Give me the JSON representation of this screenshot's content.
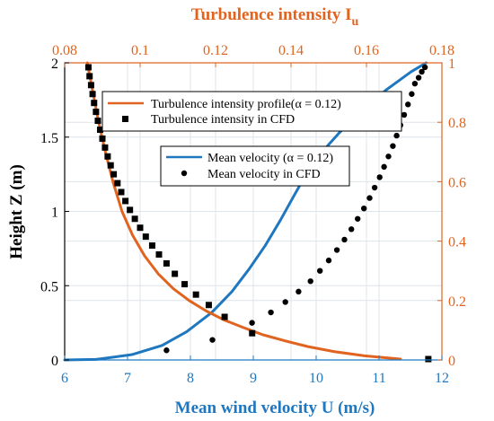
{
  "chart_data": {
    "type": "line",
    "title": "",
    "xlabel_bottom": "Mean wind velocity U (m/s)",
    "xlabel_top_main": "Turbulence intensity I",
    "xlabel_top_sub": "u",
    "ylabel": "Height Z (m)",
    "x_bottom_range": [
      6,
      12
    ],
    "x_bottom_ticks": [
      "6",
      "7",
      "8",
      "9",
      "10",
      "11",
      "12"
    ],
    "x_top_range": [
      0.08,
      0.18
    ],
    "x_top_ticks": [
      "0.08",
      "0.1",
      "0.12",
      "0.14",
      "0.16",
      "0.18"
    ],
    "y_left_range": [
      0,
      2
    ],
    "y_left_ticks": [
      "0",
      "0.5",
      "1",
      "1.5",
      "2"
    ],
    "y_right_range": [
      0,
      1
    ],
    "y_right_ticks": [
      "0",
      "0.2",
      "0.4",
      "0.6",
      "0.8",
      "1"
    ],
    "grid": true,
    "colors": {
      "velocity": "#1f77c0",
      "turbulence": "#e06420",
      "markers": "#000000",
      "grid": "#dde4ea"
    },
    "legend_turbulence": {
      "placement": "top-center",
      "entries": [
        "Turbulence intensity profile(α = 0.12)",
        "Turbulence intensity in CFD"
      ]
    },
    "legend_velocity": {
      "placement": "upper-middle",
      "entries": [
        "Mean velocity (α = 0.12)",
        "Mean velocity in CFD"
      ]
    },
    "series": [
      {
        "name": "Mean velocity (α = 0.12)",
        "axis": "bottom",
        "style": "line",
        "x": [
          6.0,
          6.5,
          7.07,
          7.55,
          7.94,
          8.34,
          8.66,
          8.93,
          9.19,
          9.43,
          9.64,
          9.84,
          10.02,
          10.2,
          10.37,
          10.53,
          10.69,
          10.84,
          10.98,
          11.12,
          11.25,
          11.38,
          11.51,
          11.63,
          11.75
        ],
        "y": [
          0.0,
          0.0036,
          0.036,
          0.098,
          0.19,
          0.32,
          0.46,
          0.61,
          0.77,
          0.94,
          1.1,
          1.25,
          1.36,
          1.45,
          1.53,
          1.6,
          1.66,
          1.72,
          1.77,
          1.82,
          1.86,
          1.9,
          1.94,
          1.97,
          2.0
        ]
      },
      {
        "name": "Mean velocity in CFD",
        "axis": "bottom",
        "style": "dot",
        "x": [
          7.62,
          8.35,
          8.98,
          9.28,
          9.51,
          9.72,
          9.91,
          10.06,
          10.2,
          10.33,
          10.45,
          10.56,
          10.66,
          10.76,
          10.85,
          10.93,
          11.01,
          11.08,
          11.15,
          11.22,
          11.28,
          11.34,
          11.4,
          11.46,
          11.52,
          11.57,
          11.63,
          11.68,
          11.73
        ],
        "y": [
          0.065,
          0.135,
          0.25,
          0.32,
          0.39,
          0.46,
          0.53,
          0.6,
          0.67,
          0.74,
          0.81,
          0.88,
          0.95,
          1.02,
          1.09,
          1.16,
          1.23,
          1.3,
          1.37,
          1.44,
          1.51,
          1.58,
          1.65,
          1.72,
          1.79,
          1.86,
          1.9,
          1.94,
          1.97
        ]
      },
      {
        "name": "Turbulence intensity profile(α = 0.12)",
        "axis": "top",
        "style": "line",
        "x": [
          0.086,
          0.0875,
          0.089,
          0.0908,
          0.0928,
          0.0952,
          0.098,
          0.1012,
          0.1048,
          0.1088,
          0.113,
          0.1175,
          0.1222,
          0.1272,
          0.1325,
          0.1382,
          0.1445,
          0.1515,
          0.1595,
          0.169
        ],
        "y": [
          1.0,
          0.9,
          0.8,
          0.7,
          0.6,
          0.5,
          0.42,
          0.35,
          0.29,
          0.24,
          0.2,
          0.165,
          0.135,
          0.11,
          0.085,
          0.065,
          0.045,
          0.028,
          0.014,
          0.003
        ]
      },
      {
        "name": "Turbulence intensity in CFD",
        "axis": "top",
        "style": "square",
        "x": [
          0.0863,
          0.0866,
          0.087,
          0.0874,
          0.0878,
          0.0883,
          0.0888,
          0.0894,
          0.09,
          0.0907,
          0.0914,
          0.0922,
          0.093,
          0.094,
          0.095,
          0.0961,
          0.0973,
          0.0986,
          0.1,
          0.1015,
          0.1032,
          0.105,
          0.107,
          0.1092,
          0.1118,
          0.1148,
          0.1182,
          0.1224,
          0.1297,
          0.1764
        ],
        "y": [
          0.985,
          0.955,
          0.925,
          0.895,
          0.865,
          0.835,
          0.805,
          0.775,
          0.745,
          0.715,
          0.685,
          0.655,
          0.625,
          0.595,
          0.565,
          0.535,
          0.505,
          0.475,
          0.445,
          0.415,
          0.385,
          0.355,
          0.325,
          0.29,
          0.255,
          0.22,
          0.185,
          0.145,
          0.09,
          0.003
        ]
      }
    ]
  }
}
